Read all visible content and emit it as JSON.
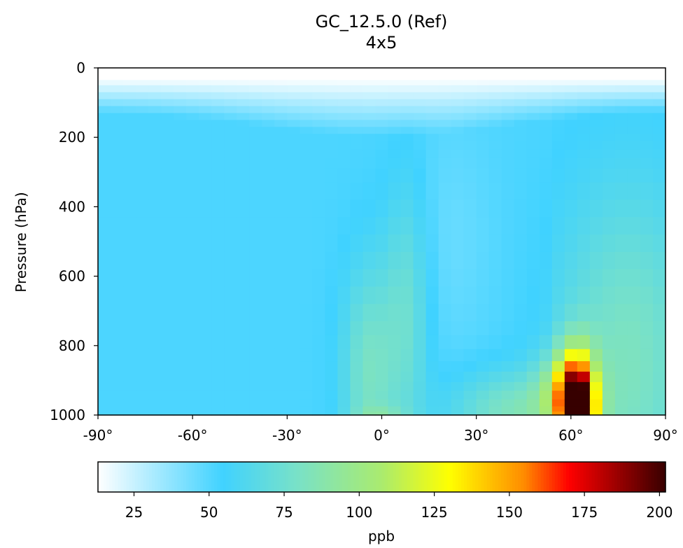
{
  "chart_data": {
    "type": "heatmap",
    "title": "GC_12.5.0 (Ref)",
    "subtitle": "4x5",
    "xlabel": "",
    "ylabel": "Pressure (hPa)",
    "xlim": [
      -90,
      90
    ],
    "ylim": [
      1000,
      0
    ],
    "x_ticks": [
      "-90°",
      "-60°",
      "-30°",
      "0°",
      "30°",
      "60°",
      "90°"
    ],
    "y_ticks": [
      "0",
      "200",
      "400",
      "600",
      "800",
      "1000"
    ],
    "colorbar": {
      "label": "ppb",
      "range": [
        13,
        202
      ],
      "ticks": [
        "25",
        "50",
        "75",
        "100",
        "125",
        "150",
        "175",
        "200"
      ],
      "colormap": "WhGrYlRd"
    },
    "field_description_points": [
      {
        "lat": -60,
        "pressure": 600,
        "value": 52
      },
      {
        "lat": -30,
        "pressure": 800,
        "value": 55
      },
      {
        "lat": -5,
        "pressure": 850,
        "value": 105
      },
      {
        "lat": 10,
        "pressure": 800,
        "value": 90
      },
      {
        "lat": 20,
        "pressure": 500,
        "value": 58
      },
      {
        "lat": 40,
        "pressure": 950,
        "value": 105
      },
      {
        "lat": 62,
        "pressure": 980,
        "value": 195
      },
      {
        "lat": 80,
        "pressure": 700,
        "value": 85
      },
      {
        "lat": 0,
        "pressure": 150,
        "value": 57
      },
      {
        "lat": 0,
        "pressure": 40,
        "value": 20
      }
    ]
  }
}
